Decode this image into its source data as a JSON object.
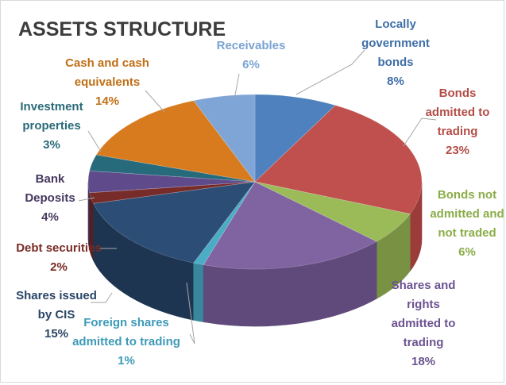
{
  "chart_data": {
    "type": "pie",
    "title": "ASSETS STRUCTURE",
    "slices": [
      {
        "name": "Locally government bonds",
        "lines": [
          "Locally",
          "government",
          "bonds"
        ],
        "pct": "8%",
        "value": 8,
        "color": "#4e81bd",
        "side": "#3a6495",
        "labelColor": "#3e6fa8"
      },
      {
        "name": "Bonds admitted to trading",
        "lines": [
          "Bonds",
          "admitted to",
          "trading"
        ],
        "pct": "23%",
        "value": 23,
        "color": "#c0504d",
        "side": "#9b3c3a",
        "labelColor": "#b34d46"
      },
      {
        "name": "Bonds not admitted and not traded",
        "lines": [
          "Bonds not",
          "admitted and",
          "not traded"
        ],
        "pct": "6%",
        "value": 6,
        "color": "#9bbb59",
        "side": "#789143",
        "labelColor": "#8aad47"
      },
      {
        "name": "Shares and rights admitted to trading",
        "lines": [
          "Shares and",
          "rights",
          "admitted to",
          "trading"
        ],
        "pct": "18%",
        "value": 18,
        "color": "#8064a2",
        "side": "#5f4a7b",
        "labelColor": "#6b5290"
      },
      {
        "name": "Foreign shares admitted to trading",
        "lines": [
          "Foreign shares",
          "admitted to trading"
        ],
        "pct": "1%",
        "value": 1,
        "color": "#4bacc6",
        "side": "#38879c",
        "labelColor": "#3d9ab8"
      },
      {
        "name": "Shares issued by CIS",
        "lines": [
          "Shares issued",
          "by CIS"
        ],
        "pct": "15%",
        "value": 15,
        "color": "#2c4d75",
        "side": "#1e3552",
        "labelColor": "#2a4466"
      },
      {
        "name": "Debt securities",
        "lines": [
          "Debt securities"
        ],
        "pct": "2%",
        "value": 2,
        "color": "#772c2a",
        "side": "#561f1e",
        "labelColor": "#7a2b25"
      },
      {
        "name": "Bank Deposits",
        "lines": [
          "Bank",
          "Deposits"
        ],
        "pct": "4%",
        "value": 4,
        "color": "#5f4b8b",
        "side": "#433663",
        "labelColor": "#46385f"
      },
      {
        "name": "Investment properties",
        "lines": [
          "Investment",
          "properties"
        ],
        "pct": "3%",
        "value": 3,
        "color": "#276a7c",
        "side": "#1b4b58",
        "labelColor": "#2a6a78"
      },
      {
        "name": "Cash and cash equivalents",
        "lines": [
          "Cash and cash",
          "equivalents"
        ],
        "pct": "14%",
        "value": 14,
        "color": "#d77b1e",
        "side": "#a55d15",
        "labelColor": "#c06f16"
      },
      {
        "name": "Receivables",
        "lines": [
          "Receivables"
        ],
        "pct": "6%",
        "value": 6,
        "color": "#7fa4d6",
        "side": "#5e7fad",
        "labelColor": "#7aa3d2"
      }
    ]
  }
}
